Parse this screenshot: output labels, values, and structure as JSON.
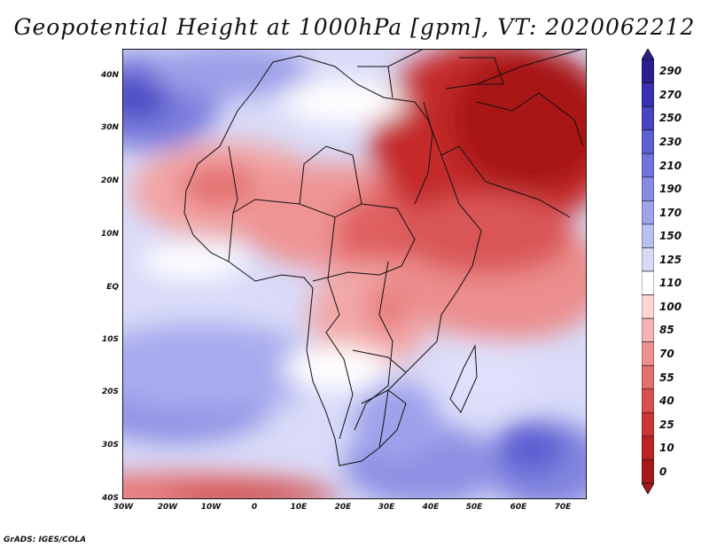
{
  "title": "Geopotential Height at 1000hPa [gpm], VT: 2020062212",
  "footer": "GrADS: IGES/COLA",
  "map": {
    "lat_labels": [
      "40N",
      "30N",
      "20N",
      "10N",
      "EQ",
      "10S",
      "20S",
      "30S",
      "40S"
    ],
    "lon_labels": [
      "30W",
      "20W",
      "10W",
      "0",
      "10E",
      "20E",
      "30E",
      "40E",
      "50E",
      "60E",
      "70E"
    ]
  },
  "colorbar": {
    "levels": [
      "290",
      "270",
      "250",
      "230",
      "210",
      "190",
      "170",
      "150",
      "125",
      "110",
      "100",
      "85",
      "70",
      "55",
      "40",
      "25",
      "10",
      "0"
    ],
    "colors": [
      "#2b1f8f",
      "#3a2fb0",
      "#4a44c2",
      "#5b5fd0",
      "#7074db",
      "#878ae2",
      "#9fa3ea",
      "#bcbff2",
      "#d8daf8",
      "#ffffff",
      "#fcd6d6",
      "#f6b4b4",
      "#ee9090",
      "#e46f6f",
      "#d95050",
      "#cc3535",
      "#bb2323",
      "#a81818"
    ]
  }
}
